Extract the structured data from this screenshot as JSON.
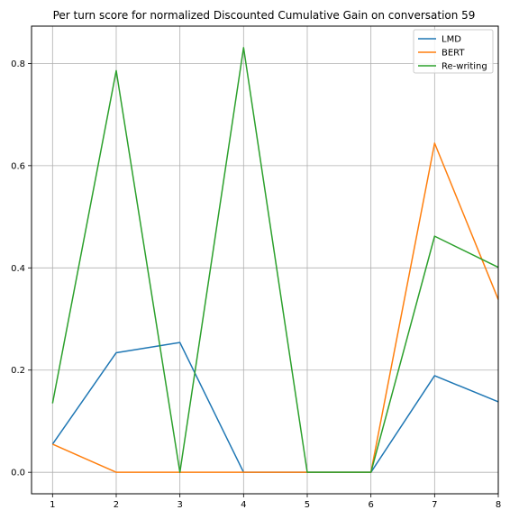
{
  "chart_data": {
    "type": "line",
    "title": "Per turn score for normalized Discounted Cumulative Gain on conversation 59",
    "xlabel": "",
    "ylabel": "",
    "x": [
      1,
      2,
      3,
      4,
      5,
      6,
      7,
      8
    ],
    "x_ticks": [
      "1",
      "2",
      "3",
      "4",
      "5",
      "6",
      "7",
      "8"
    ],
    "y_ticks": [
      "0.0",
      "0.2",
      "0.4",
      "0.6",
      "0.8"
    ],
    "xlim": [
      0.67,
      8.0
    ],
    "ylim": [
      -0.042,
      0.873
    ],
    "grid": true,
    "legend_position": "top-right",
    "series": [
      {
        "name": "LMD",
        "color": "#1f77b4",
        "values": [
          0.055,
          0.234,
          0.254,
          0.0,
          0.0,
          0.0,
          0.189,
          0.138
        ]
      },
      {
        "name": "BERT",
        "color": "#ff7f0e",
        "values": [
          0.055,
          0.0,
          0.0,
          0.0,
          0.0,
          0.0,
          0.644,
          0.338
        ]
      },
      {
        "name": "Re-writing",
        "color": "#2ca02c",
        "values": [
          0.135,
          0.786,
          0.0,
          0.831,
          0.0,
          0.0,
          0.462,
          0.401
        ]
      }
    ]
  }
}
